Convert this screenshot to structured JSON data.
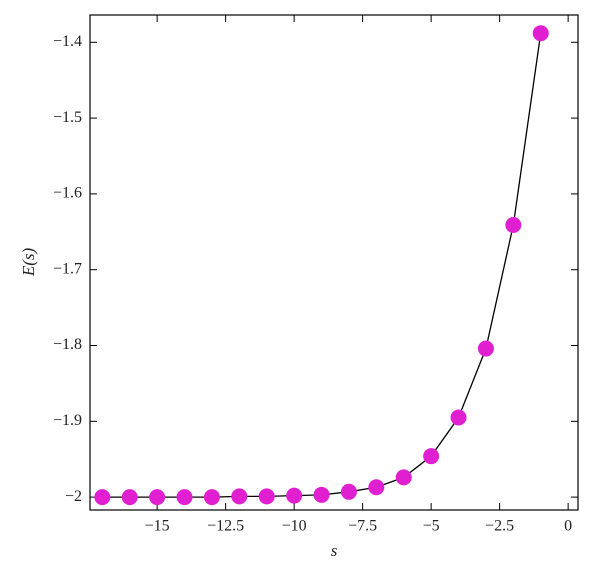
{
  "chart_data": {
    "type": "scatter",
    "x_label": "s",
    "y_label": "E(s)",
    "x": [
      -17,
      -16,
      -15,
      -14,
      -13,
      -12,
      -11,
      -10,
      -9,
      -8,
      -7,
      -6,
      -5,
      -4,
      -3,
      -2,
      -1
    ],
    "series": [
      {
        "color": "#e020d0",
        "line_color": "#000000",
        "values": [
          -2.0,
          -2.0,
          -2.0,
          -2.0,
          -2.0,
          -1.999,
          -1.999,
          -1.998,
          -1.997,
          -1.993,
          -1.987,
          -1.974,
          -1.946,
          -1.895,
          -1.804,
          -1.641,
          -1.388
        ]
      }
    ],
    "xlim": [
      -17.45,
      0.36
    ],
    "ylim": [
      -2.017,
      -1.364
    ],
    "xticks": [
      {
        "value": -15,
        "label": "−15"
      },
      {
        "value": -12.5,
        "label": "−12.5"
      },
      {
        "value": -10,
        "label": "−10"
      },
      {
        "value": -7.5,
        "label": "−7.5"
      },
      {
        "value": -5,
        "label": "−5"
      },
      {
        "value": -2.5,
        "label": "−2.5"
      },
      0
    ],
    "yticks": [
      {
        "value": -2,
        "label": "−2"
      },
      {
        "value": -1.9,
        "label": "−1.9"
      },
      {
        "value": -1.8,
        "label": "−1.8"
      },
      {
        "value": -1.7,
        "label": "−1.7"
      },
      {
        "value": -1.6,
        "label": "−1.6"
      },
      {
        "value": -1.5,
        "label": "−1.5"
      },
      {
        "value": -1.4,
        "label": "−1.4"
      }
    ],
    "grid": false
  }
}
